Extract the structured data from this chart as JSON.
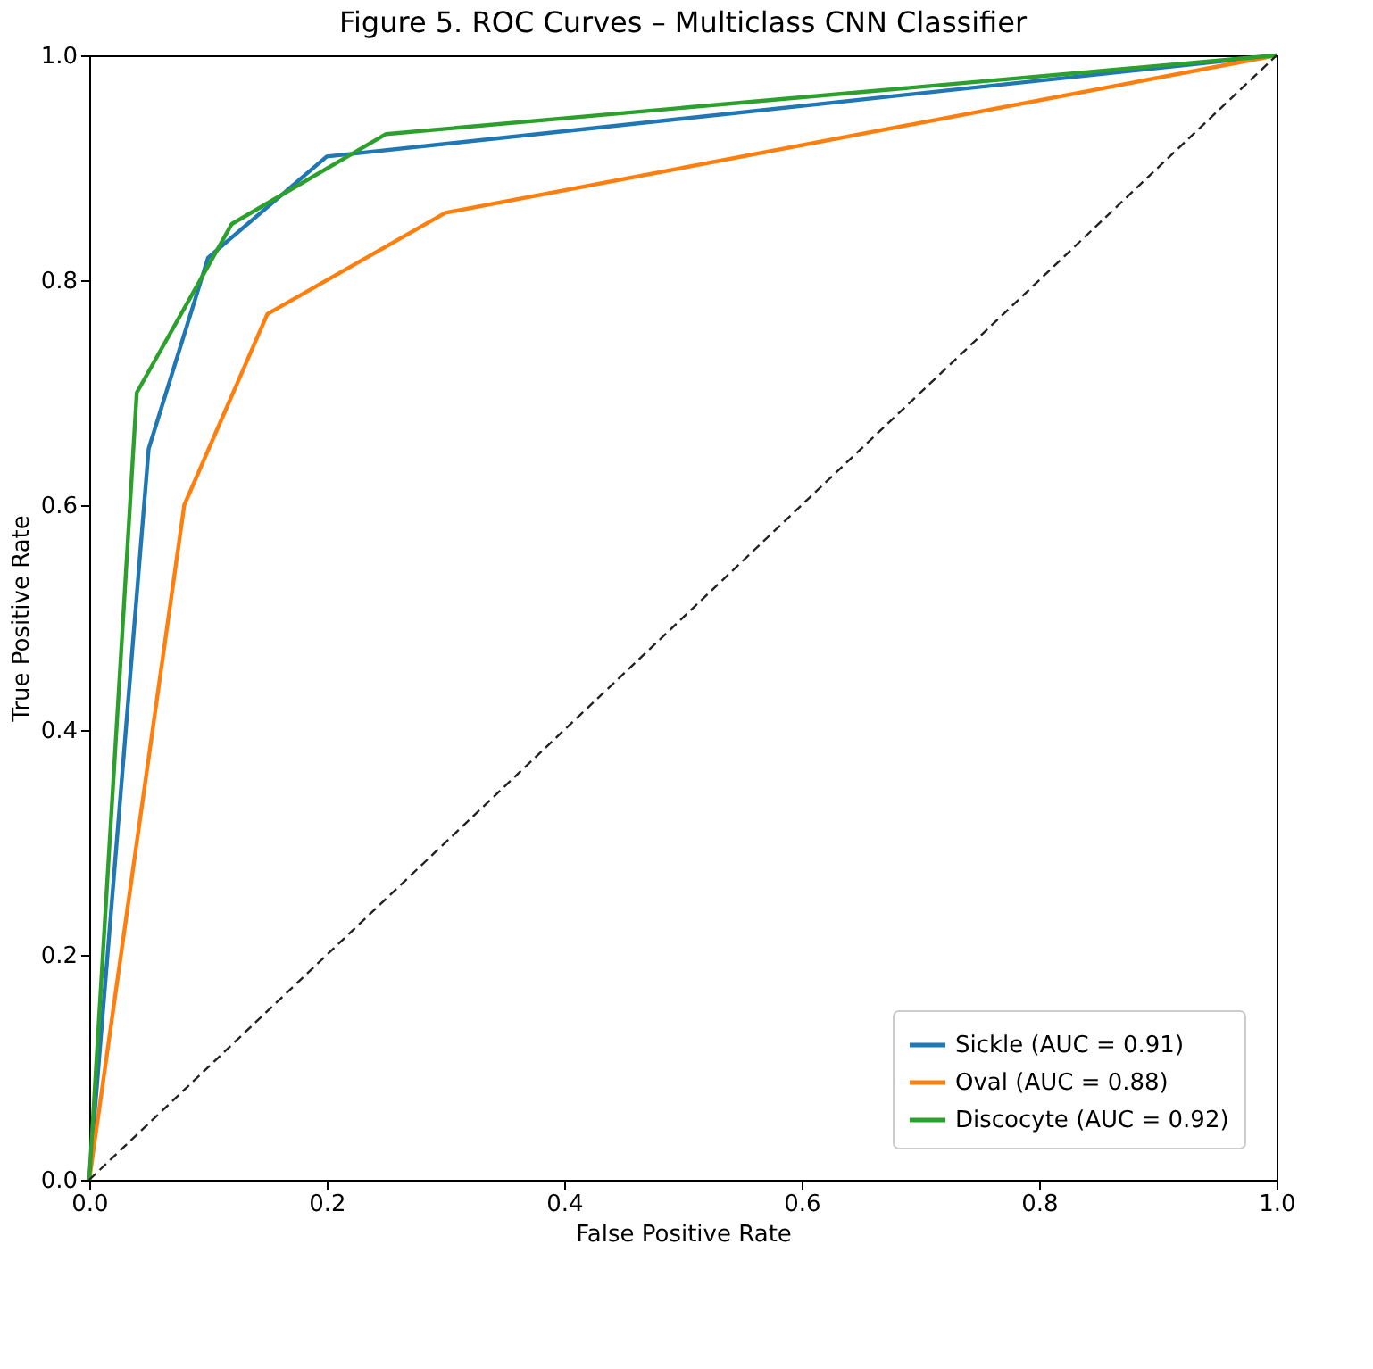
{
  "chart_data": {
    "type": "line",
    "title": "Figure 5. ROC Curves – Multiclass CNN Classifier",
    "xlabel": "False Positive Rate",
    "ylabel": "True Positive Rate",
    "xlim": [
      0,
      1
    ],
    "ylim": [
      0,
      1
    ],
    "xticks": [
      {
        "value": 0,
        "label": "0.0"
      },
      {
        "value": 0.2,
        "label": "0.2"
      },
      {
        "value": 0.4,
        "label": "0.4"
      },
      {
        "value": 0.6,
        "label": "0.6"
      },
      {
        "value": 0.8,
        "label": "0.8"
      },
      {
        "value": 1,
        "label": "1.0"
      }
    ],
    "yticks": [
      {
        "value": 0,
        "label": "0.0"
      },
      {
        "value": 0.2,
        "label": "0.2"
      },
      {
        "value": 0.4,
        "label": "0.4"
      },
      {
        "value": 0.6,
        "label": "0.6"
      },
      {
        "value": 0.8,
        "label": "0.8"
      },
      {
        "value": 1,
        "label": "1.0"
      }
    ],
    "series": [
      {
        "name": "Sickle (AUC = 0.91)",
        "color": "#1f77b4",
        "x": [
          0,
          0.05,
          0.1,
          0.2,
          1
        ],
        "values": [
          0,
          0.65,
          0.82,
          0.91,
          1
        ]
      },
      {
        "name": "Oval (AUC = 0.88)",
        "color": "#ff7f0e",
        "x": [
          0,
          0.08,
          0.15,
          0.3,
          1
        ],
        "values": [
          0,
          0.6,
          0.77,
          0.86,
          1
        ]
      },
      {
        "name": "Discocyte (AUC = 0.92)",
        "color": "#2ca02c",
        "x": [
          0,
          0.04,
          0.12,
          0.25,
          1
        ],
        "values": [
          0,
          0.7,
          0.85,
          0.93,
          1
        ]
      },
      {
        "color": "#222222",
        "x": [
          0,
          1
        ],
        "values": [
          0,
          1
        ],
        "line_style": "dashed"
      }
    ],
    "legend": "bottom right",
    "grid": false,
    "marker": "none"
  }
}
